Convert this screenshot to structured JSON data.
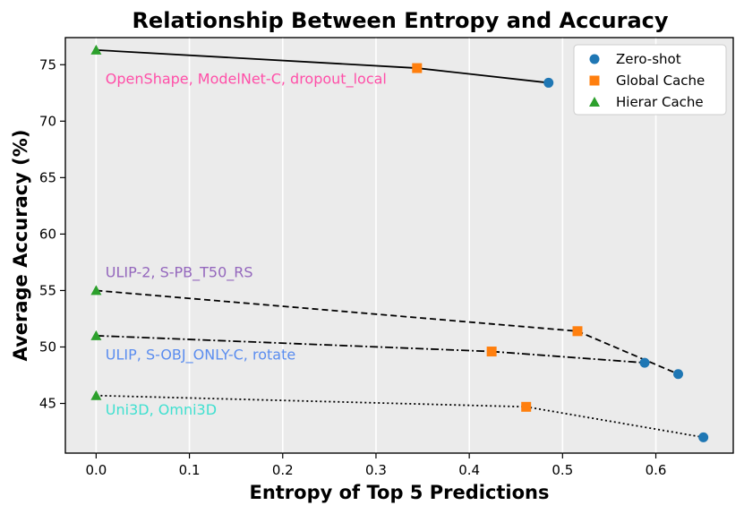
{
  "chart_data": {
    "type": "scatter",
    "title": "Relationship Between Entropy and Accuracy",
    "xlabel": "Entropy of Top 5 Predictions",
    "ylabel": "Average Accuracy (%)",
    "xlim": [
      -0.033,
      0.683
    ],
    "ylim": [
      40.6,
      77.4
    ],
    "xticks": [
      0.0,
      0.1,
      0.2,
      0.3,
      0.4,
      0.5,
      0.6
    ],
    "xtick_labels": [
      "0.0",
      "0.1",
      "0.2",
      "0.3",
      "0.4",
      "0.5",
      "0.6"
    ],
    "yticks": [
      45,
      50,
      55,
      60,
      65,
      70,
      75
    ],
    "ytick_labels": [
      "45",
      "50",
      "55",
      "60",
      "65",
      "70",
      "75"
    ],
    "grid": "vertical",
    "legend_position": "top-right",
    "markers": [
      {
        "name": "Zero-shot",
        "shape": "circle",
        "color": "#1f77b4"
      },
      {
        "name": "Global Cache",
        "shape": "square",
        "color": "#ff7f0e"
      },
      {
        "name": "Hierar Cache",
        "shape": "triangle",
        "color": "#2ca02c"
      }
    ],
    "groups": [
      {
        "label": "OpenShape, ModelNet-C, dropout_local",
        "label_color": "#ff4fa8",
        "label_anchor": [
          0.01,
          73.3
        ],
        "line_style": "solid",
        "points": [
          {
            "method": "Hierar Cache",
            "x": 0.0,
            "y": 76.3
          },
          {
            "method": "Global Cache",
            "x": 0.344,
            "y": 74.7
          },
          {
            "method": "Zero-shot",
            "x": 0.485,
            "y": 73.4
          }
        ]
      },
      {
        "label": "ULIP-2, S-PB_T50_RS",
        "label_color": "#9467bd",
        "label_anchor": [
          0.01,
          56.2
        ],
        "line_style": "dashed",
        "points": [
          {
            "method": "Hierar Cache",
            "x": 0.0,
            "y": 55.0
          },
          {
            "method": "Global Cache",
            "x": 0.516,
            "y": 51.4
          },
          {
            "method": "Zero-shot",
            "x": 0.624,
            "y": 47.6
          }
        ]
      },
      {
        "label": "ULIP, S-OBJ_ONLY-C, rotate",
        "label_color": "#5b8def",
        "label_anchor": [
          0.01,
          48.9
        ],
        "line_style": "dashdot",
        "points": [
          {
            "method": "Hierar Cache",
            "x": 0.0,
            "y": 51.0
          },
          {
            "method": "Global Cache",
            "x": 0.424,
            "y": 49.6
          },
          {
            "method": "Zero-shot",
            "x": 0.588,
            "y": 48.6
          }
        ]
      },
      {
        "label": "Uni3D, Omni3D",
        "label_color": "#40e0d0",
        "label_anchor": [
          0.01,
          44.0
        ],
        "line_style": "dotted",
        "points": [
          {
            "method": "Hierar Cache",
            "x": 0.0,
            "y": 45.7
          },
          {
            "method": "Global Cache",
            "x": 0.461,
            "y": 44.7
          },
          {
            "method": "Zero-shot",
            "x": 0.651,
            "y": 42.0
          }
        ]
      }
    ]
  }
}
